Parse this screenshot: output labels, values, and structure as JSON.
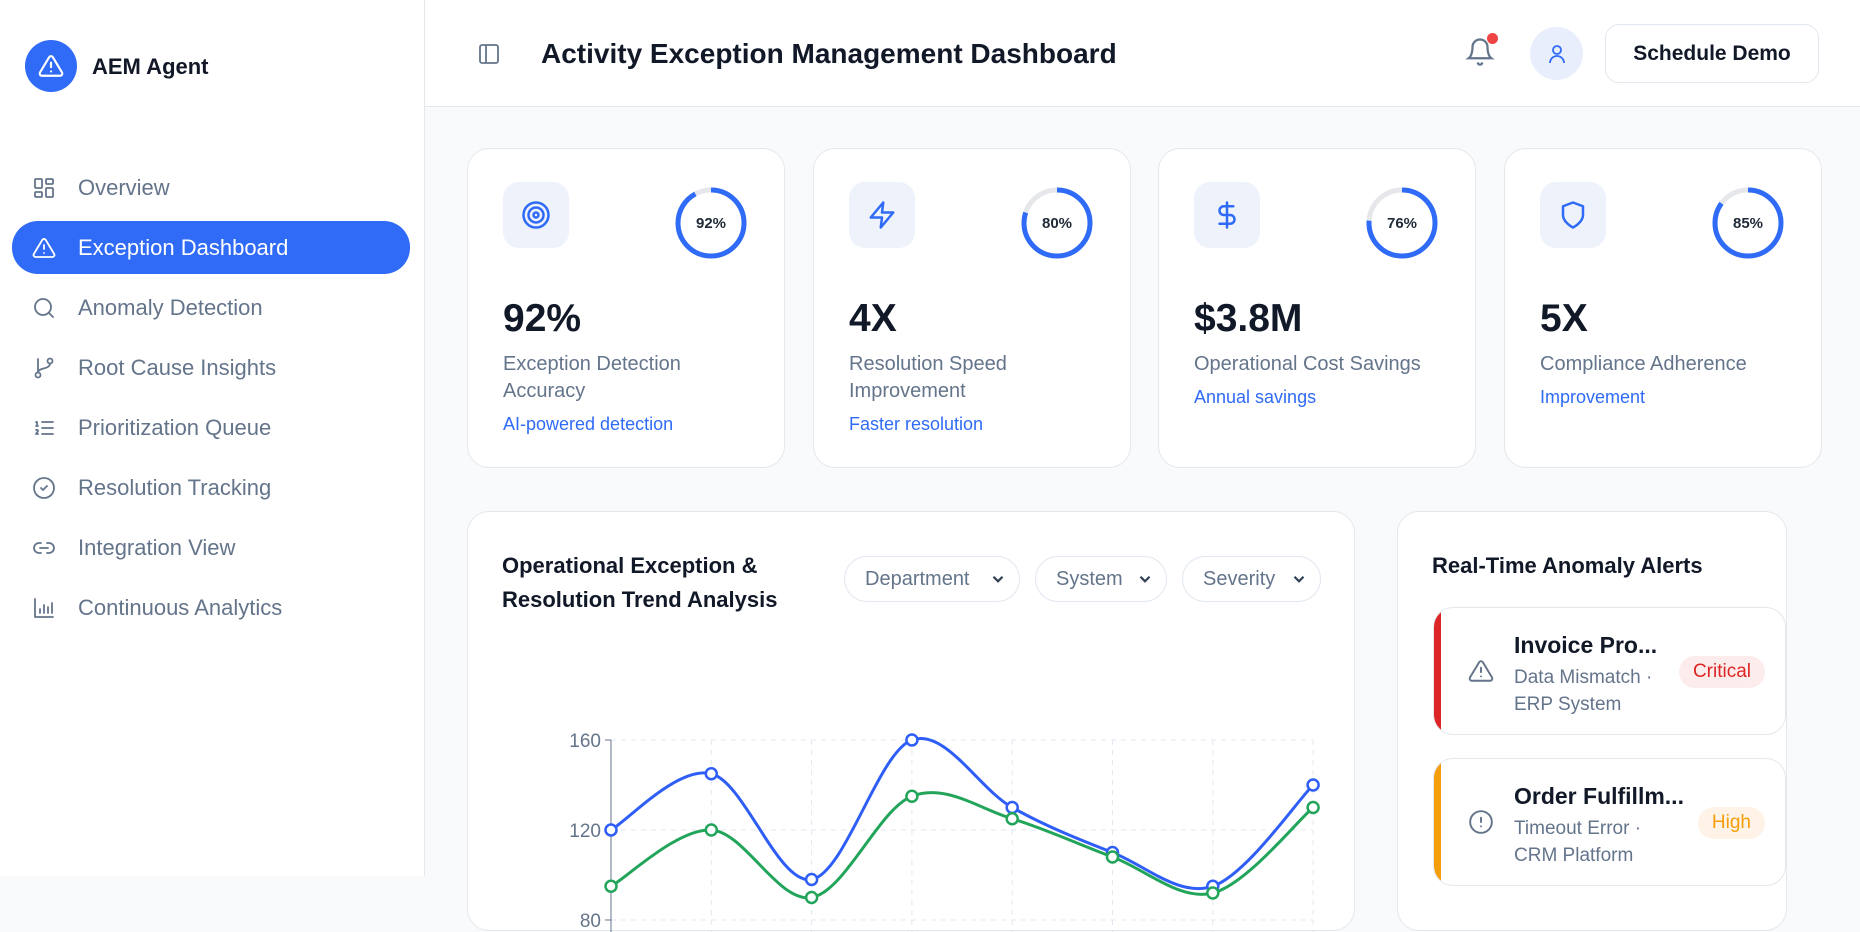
{
  "brand": {
    "name": "AEM Agent",
    "color": "#2f6bf6"
  },
  "sidebar": {
    "items": [
      {
        "label": "Overview",
        "icon": "grid-icon",
        "active": false
      },
      {
        "label": "Exception Dashboard",
        "icon": "alert-triangle-icon",
        "active": true
      },
      {
        "label": "Anomaly Detection",
        "icon": "search-icon",
        "active": false
      },
      {
        "label": "Root Cause Insights",
        "icon": "git-branch-icon",
        "active": false
      },
      {
        "label": "Prioritization Queue",
        "icon": "list-ordered-icon",
        "active": false
      },
      {
        "label": "Resolution Tracking",
        "icon": "check-circle-icon",
        "active": false
      },
      {
        "label": "Integration View",
        "icon": "link-icon",
        "active": false
      },
      {
        "label": "Continuous Analytics",
        "icon": "bar-chart-icon",
        "active": false
      }
    ]
  },
  "header": {
    "title": "Activity Exception Management Dashboard",
    "schedule_label": "Schedule Demo",
    "notification_dot": true
  },
  "kpis": [
    {
      "icon": "target-icon",
      "ring_label": "92%",
      "ring_value": 92,
      "value": "92%",
      "label": "Exception Detection Accuracy",
      "sub": "AI-powered detection"
    },
    {
      "icon": "zap-icon",
      "ring_label": "80%",
      "ring_value": 80,
      "value": "4X",
      "label": "Resolution Speed Improvement",
      "sub": "Faster resolution"
    },
    {
      "icon": "dollar-icon",
      "ring_label": "76%",
      "ring_value": 76,
      "value": "$3.8M",
      "label": "Operational Cost Savings",
      "sub": "Annual savings"
    },
    {
      "icon": "shield-icon",
      "ring_label": "85%",
      "ring_value": 85,
      "value": "5X",
      "label": "Compliance Adherence",
      "sub": "Improvement"
    }
  ],
  "trend": {
    "title": "Operational Exception & Resolution Trend Analysis",
    "filters": [
      "Department",
      "System",
      "Severity"
    ]
  },
  "chart_data": {
    "type": "line",
    "title": "Operational Exception & Resolution Trend Analysis",
    "y_ticks": [
      "160",
      "120",
      "80"
    ],
    "ylim_visible": [
      80,
      160
    ],
    "grid": true,
    "series": [
      {
        "color": "#2f5ef6",
        "values": [
          120,
          145,
          98,
          160,
          130,
          110,
          95,
          140
        ]
      },
      {
        "color": "#22a55a",
        "values": [
          95,
          120,
          90,
          135,
          125,
          108,
          92,
          130
        ]
      }
    ]
  },
  "alerts": {
    "title": "Real-Time Anomaly Alerts",
    "items": [
      {
        "title": "Invoice Pro...",
        "desc": "Data Mismatch · ERP System",
        "severity": "Critical",
        "icon": "alert-triangle-icon",
        "color": "#dc2626",
        "bg": "#fdecec"
      },
      {
        "title": "Order Fulfillm...",
        "desc": "Timeout Error · CRM Platform",
        "severity": "High",
        "icon": "alert-circle-icon",
        "color": "#f59e0b",
        "bg": "#fef3e6"
      }
    ]
  }
}
